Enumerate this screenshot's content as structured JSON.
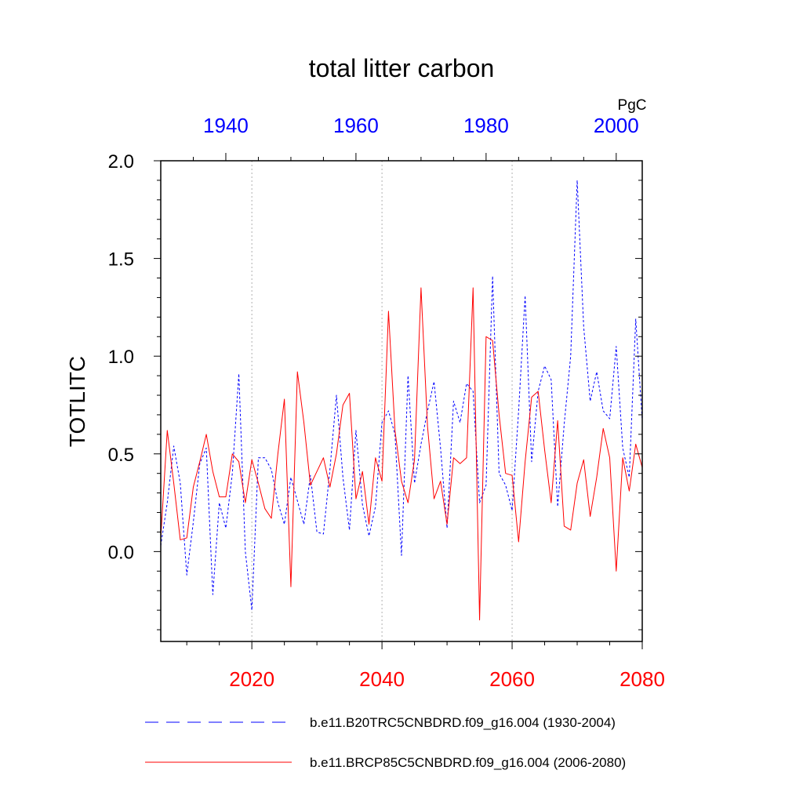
{
  "chart_data": {
    "type": "line",
    "title": "total litter carbon",
    "ylabel": "TOTLITC",
    "units": "PgC",
    "ylim": [
      -0.46,
      2.0
    ],
    "yticks": [
      "2.0",
      "1.5",
      "1.0",
      "0.5",
      "0.0"
    ],
    "ytick_values": [
      2.0,
      1.5,
      1.0,
      0.5,
      0.0
    ],
    "grid": "vertical dotted lines at major bottom ticks",
    "bottom_axis": {
      "range": [
        2006,
        2080
      ],
      "ticks": [
        "2020",
        "2040",
        "2060",
        "2080"
      ],
      "tick_values": [
        2020,
        2040,
        2060,
        2080
      ],
      "color": "#ff0000"
    },
    "top_axis": {
      "range": [
        1930,
        2004
      ],
      "ticks": [
        "1940",
        "1960",
        "1980",
        "2000"
      ],
      "tick_values": [
        1940,
        1960,
        1980,
        2000
      ],
      "color": "#0000ff"
    },
    "series": [
      {
        "name": "b.e11.B20TRC5CNBDRD.f09_g16.004 (1930-2004)",
        "axis": "top",
        "color": "#0000ff",
        "style": "dashed",
        "x": [
          1930,
          1931,
          1932,
          1933,
          1934,
          1935,
          1936,
          1937,
          1938,
          1939,
          1940,
          1941,
          1942,
          1943,
          1944,
          1945,
          1946,
          1947,
          1948,
          1949,
          1950,
          1951,
          1952,
          1953,
          1954,
          1955,
          1956,
          1957,
          1958,
          1959,
          1960,
          1961,
          1962,
          1963,
          1964,
          1965,
          1966,
          1967,
          1968,
          1969,
          1970,
          1971,
          1972,
          1973,
          1974,
          1975,
          1976,
          1977,
          1978,
          1979,
          1980,
          1981,
          1982,
          1983,
          1984,
          1985,
          1986,
          1987,
          1988,
          1989,
          1990,
          1991,
          1992,
          1993,
          1994,
          1995,
          1996,
          1997,
          1998,
          1999,
          2000,
          2001,
          2002,
          2003,
          2004
        ],
        "values": [
          0.03,
          0.25,
          0.54,
          0.35,
          -0.12,
          0.15,
          0.45,
          0.53,
          -0.22,
          0.25,
          0.12,
          0.4,
          0.91,
          0.0,
          -0.3,
          0.48,
          0.48,
          0.42,
          0.25,
          0.14,
          0.38,
          0.26,
          0.14,
          0.39,
          0.1,
          0.09,
          0.42,
          0.8,
          0.38,
          0.11,
          0.62,
          0.24,
          0.08,
          0.23,
          0.66,
          0.72,
          0.6,
          -0.02,
          0.9,
          0.35,
          0.55,
          0.72,
          0.87,
          0.53,
          0.12,
          0.77,
          0.66,
          0.86,
          0.82,
          0.25,
          0.34,
          1.41,
          0.4,
          0.34,
          0.21,
          0.72,
          1.31,
          0.46,
          0.82,
          0.95,
          0.88,
          0.23,
          0.65,
          1.0,
          1.9,
          1.15,
          0.77,
          0.92,
          0.72,
          0.68,
          1.05,
          0.53,
          0.38,
          1.19,
          0.67
        ]
      },
      {
        "name": "b.e11.BRCP85C5CNBDRD.f09_g16.004 (2006-2080)",
        "axis": "bottom",
        "color": "#ff0000",
        "style": "solid",
        "x": [
          2006,
          2007,
          2008,
          2009,
          2010,
          2011,
          2012,
          2013,
          2014,
          2015,
          2016,
          2017,
          2018,
          2019,
          2020,
          2021,
          2022,
          2023,
          2024,
          2025,
          2026,
          2027,
          2028,
          2029,
          2030,
          2031,
          2032,
          2033,
          2034,
          2035,
          2036,
          2037,
          2038,
          2039,
          2040,
          2041,
          2042,
          2043,
          2044,
          2045,
          2046,
          2047,
          2048,
          2049,
          2050,
          2051,
          2052,
          2053,
          2054,
          2055,
          2056,
          2057,
          2058,
          2059,
          2060,
          2061,
          2062,
          2063,
          2064,
          2065,
          2066,
          2067,
          2068,
          2069,
          2070,
          2071,
          2072,
          2073,
          2074,
          2075,
          2076,
          2077,
          2078,
          2079,
          2080
        ],
        "values": [
          0.07,
          0.62,
          0.35,
          0.06,
          0.07,
          0.33,
          0.46,
          0.6,
          0.41,
          0.28,
          0.28,
          0.5,
          0.46,
          0.25,
          0.47,
          0.35,
          0.22,
          0.17,
          0.5,
          0.78,
          -0.18,
          0.92,
          0.66,
          0.34,
          0.41,
          0.48,
          0.33,
          0.5,
          0.75,
          0.81,
          0.27,
          0.41,
          0.14,
          0.48,
          0.36,
          1.23,
          0.62,
          0.36,
          0.25,
          0.47,
          1.35,
          0.64,
          0.27,
          0.36,
          0.14,
          0.48,
          0.45,
          0.48,
          1.35,
          -0.35,
          1.1,
          1.08,
          0.7,
          0.4,
          0.39,
          0.05,
          0.46,
          0.79,
          0.82,
          0.52,
          0.25,
          0.67,
          0.13,
          0.11,
          0.35,
          0.47,
          0.18,
          0.38,
          0.63,
          0.48,
          -0.1,
          0.48,
          0.31,
          0.55,
          0.43
        ]
      }
    ]
  }
}
